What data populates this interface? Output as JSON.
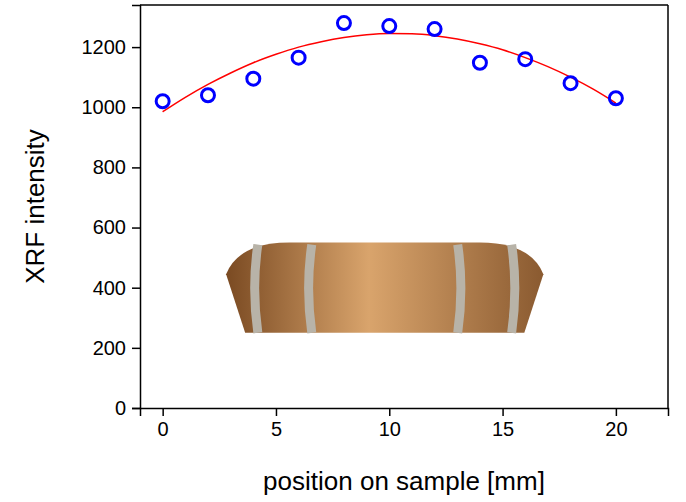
{
  "chart_data": {
    "type": "scatter",
    "x_label": "position on sample [mm]",
    "y_label": "XRF intensity",
    "xlim": [
      -1,
      22.3
    ],
    "ylim": [
      0,
      1340
    ],
    "xticks": [
      0,
      5,
      10,
      15,
      20
    ],
    "yticks": [
      0,
      200,
      400,
      600,
      800,
      1000,
      1200
    ],
    "grid": false,
    "series": [
      {
        "type": "scatter",
        "marker": "circle",
        "color": "#0000ff",
        "x": [
          0,
          2,
          4,
          6,
          8,
          10,
          12,
          14,
          16,
          18,
          20
        ],
        "values": [
          1020,
          1040,
          1095,
          1165,
          1280,
          1270,
          1260,
          1148,
          1160,
          1080,
          1030
        ]
      },
      {
        "type": "line",
        "line_style": "solid",
        "color": "#ff0000",
        "x": [
          0,
          1,
          2,
          3,
          4,
          5,
          6,
          7,
          8,
          9,
          10,
          11,
          12,
          13,
          14,
          15,
          16,
          17,
          18,
          19,
          20
        ],
        "values": [
          985,
          1033,
          1076,
          1114,
          1148,
          1176,
          1200,
          1218,
          1232,
          1241,
          1245,
          1244,
          1238,
          1227,
          1211,
          1191,
          1165,
          1135,
          1100,
          1060,
          1014
        ]
      }
    ]
  }
}
